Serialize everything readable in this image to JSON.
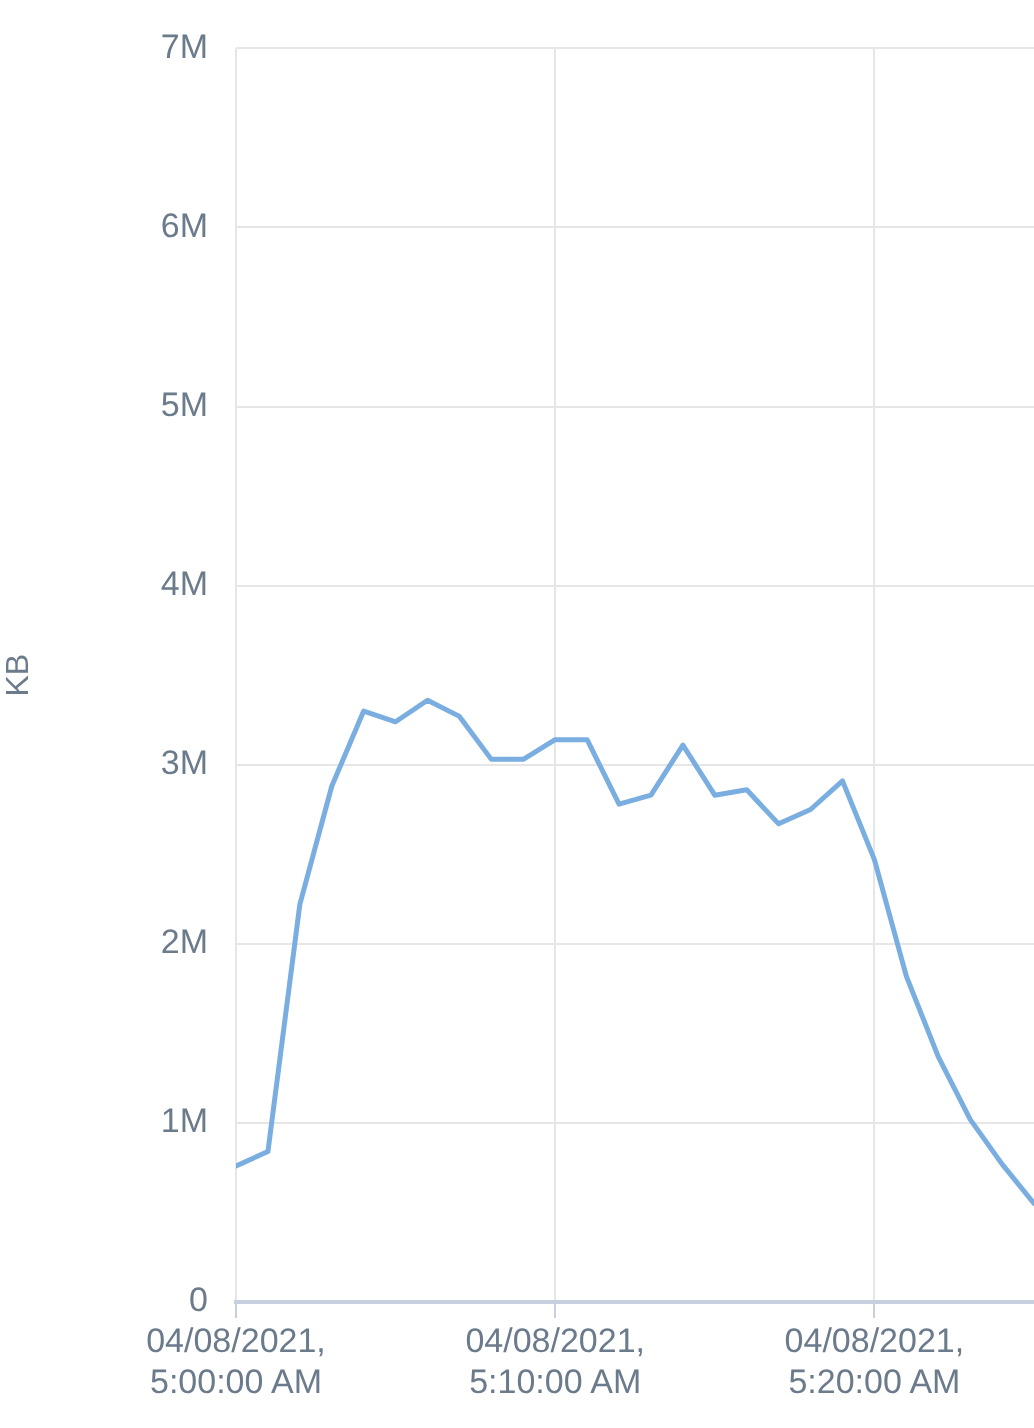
{
  "chart_data": {
    "type": "line",
    "ylabel": "KB",
    "x": [
      "2021-04-08T05:00",
      "2021-04-08T05:01",
      "2021-04-08T05:02",
      "2021-04-08T05:03",
      "2021-04-08T05:04",
      "2021-04-08T05:05",
      "2021-04-08T05:06",
      "2021-04-08T05:07",
      "2021-04-08T05:08",
      "2021-04-08T05:09",
      "2021-04-08T05:10",
      "2021-04-08T05:11",
      "2021-04-08T05:12",
      "2021-04-08T05:13",
      "2021-04-08T05:14",
      "2021-04-08T05:15",
      "2021-04-08T05:16",
      "2021-04-08T05:17",
      "2021-04-08T05:18",
      "2021-04-08T05:19",
      "2021-04-08T05:20",
      "2021-04-08T05:21",
      "2021-04-08T05:22",
      "2021-04-08T05:23",
      "2021-04-08T05:24",
      "2021-04-08T05:25"
    ],
    "series": [
      {
        "color": "#7aaee0",
        "values": [
          760000,
          840000,
          2220000,
          2880000,
          3300000,
          3240000,
          3360000,
          3270000,
          3030000,
          3030000,
          3140000,
          3140000,
          2780000,
          2830000,
          3110000,
          2830000,
          2860000,
          2670000,
          2750000,
          2910000,
          2470000,
          1820000,
          1370000,
          1020000,
          770000,
          550000
        ]
      }
    ],
    "xlim": [
      "2021-04-08T05:00",
      "2021-04-08T05:25"
    ],
    "xticks": [
      {
        "value": "2021-04-08T05:00",
        "label": "04/08/2021, 5:00:00 AM"
      },
      {
        "value": "2021-04-08T05:10",
        "label": "04/08/2021, 5:10:00 AM"
      },
      {
        "value": "2021-04-08T05:20",
        "label": "04/08/2021, 5:20:00 AM"
      }
    ],
    "ylim": [
      0,
      7000000
    ],
    "yticks": [
      0,
      {
        "value": 1000000,
        "label": "1M"
      },
      {
        "value": 2000000,
        "label": "2M"
      },
      {
        "value": 3000000,
        "label": "3M"
      },
      {
        "value": 4000000,
        "label": "4M"
      },
      {
        "value": 5000000,
        "label": "5M"
      },
      {
        "value": 6000000,
        "label": "6M"
      },
      {
        "value": 7000000,
        "label": "7M"
      }
    ],
    "grid": true,
    "marker": "none",
    "line_style": "solid"
  }
}
